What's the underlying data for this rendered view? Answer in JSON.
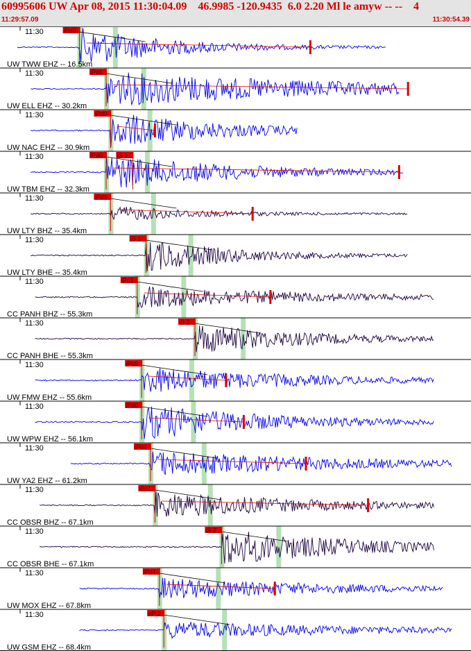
{
  "header": {
    "title": "60995606 UW Apr 08, 2015 11:30:04.09    46.9985 -120.9435  6.0 2.20 Ml le amyw -- --    4",
    "start_time": "11:29:57.09",
    "end_time": "11:30:54.39"
  },
  "chart_data": {
    "type": "line",
    "time_tick_label": "11:30",
    "colors": {
      "z": "#0000ee",
      "h": "#1a0040",
      "pick": "#dd0000",
      "window": "#a8dca8",
      "grid": "#000000",
      "travel_curve": "#000000"
    },
    "traces": [
      {
        "label": "UW TWW EHZ -- 16.5km",
        "comp": "z",
        "start": 0.0,
        "arrival": 0.14,
        "amp": 1.0,
        "decay": 0.2,
        "dur": 0.83,
        "pick": "iPd0",
        "pick_t": 0.14,
        "mark": 0.66
      },
      {
        "label": "UW ELL EHZ -- 30.2km",
        "comp": "z",
        "start": 0.03,
        "arrival": 0.2,
        "amp": 0.9,
        "decay": 0.55,
        "dur": 0.86,
        "pick": "iPd1",
        "pick_t": 0.2,
        "mark": 0.88
      },
      {
        "label": "UW NAC EHZ -- 30.9km",
        "comp": "z",
        "start": 0.03,
        "arrival": 0.21,
        "amp": 0.95,
        "decay": 0.25,
        "dur": 0.63,
        "pick": "iPd0",
        "pick_t": 0.21,
        "mark": 0.31
      },
      {
        "label": "UW TBM EHZ -- 32.3km",
        "comp": "z",
        "start": 0.03,
        "arrival": 0.2,
        "amp": 0.9,
        "decay": 0.3,
        "dur": 0.87,
        "pick": "iPd0",
        "pick_t": 0.2,
        "mark": 0.86,
        "s_pick": "iS 1",
        "s_t": 0.26
      },
      {
        "label": "UW LTY BHZ -- 35.4km",
        "comp": "h",
        "start": 0.03,
        "arrival": 0.21,
        "amp": 0.4,
        "decay": 0.2,
        "dur": 0.88,
        "pick": "iPd1",
        "pick_t": 0.21,
        "mark": 0.53
      },
      {
        "label": "UW LTY BHE -- 35.4km",
        "comp": "h",
        "start": 0.03,
        "arrival": 0.29,
        "amp": 0.85,
        "decay": 0.2,
        "dur": 0.88,
        "pick": "iS 1",
        "pick_t": 0.29,
        "mark": null
      },
      {
        "label": "CC PANH BHZ -- 55.3km",
        "comp": "h",
        "start": 0.04,
        "arrival": 0.27,
        "amp": 0.55,
        "decay": 0.4,
        "dur": 0.94,
        "pick": "iPd1",
        "pick_t": 0.27,
        "mark": 0.57
      },
      {
        "label": "CC PANH BHE -- 55.3km",
        "comp": "h",
        "start": 0.04,
        "arrival": 0.4,
        "amp": 0.8,
        "decay": 0.25,
        "dur": 0.94,
        "pick": "iS 1",
        "pick_t": 0.4,
        "mark": null
      },
      {
        "label": "UW FMW EHZ -- 55.6km",
        "comp": "z",
        "start": 0.04,
        "arrival": 0.28,
        "amp": 0.7,
        "decay": 0.35,
        "dur": 0.94,
        "pick": "iPc0",
        "pick_t": 0.28,
        "mark": 0.47
      },
      {
        "label": "UW WPW EHZ -- 56.1km",
        "comp": "z",
        "start": 0.04,
        "arrival": 0.28,
        "amp": 0.9,
        "decay": 0.3,
        "dur": 0.94,
        "pick": "iPd0",
        "pick_t": 0.28,
        "mark": 0.51
      },
      {
        "label": "UW YA2 EHZ -- 61.2km",
        "comp": "z",
        "start": 0.12,
        "arrival": 0.3,
        "amp": 0.65,
        "decay": 0.45,
        "dur": 0.98,
        "pick": "iPd1",
        "pick_t": 0.3,
        "mark": 0.65
      },
      {
        "label": "CC OBSR BHZ -- 67.1km",
        "comp": "h",
        "start": 0.05,
        "arrival": 0.31,
        "amp": 0.7,
        "decay": 0.35,
        "dur": 0.94,
        "pick": "iPc1",
        "pick_t": 0.31,
        "mark": 0.79
      },
      {
        "label": "CC OBSR BHE -- 67.1km",
        "comp": "h",
        "start": 0.05,
        "arrival": 0.46,
        "amp": 0.95,
        "decay": 0.3,
        "dur": 0.94,
        "pick": "iS 2",
        "pick_t": 0.46,
        "mark": null
      },
      {
        "label": "UW MOX EHZ -- 67.8km",
        "comp": "z",
        "start": 0.14,
        "arrival": 0.32,
        "amp": 0.55,
        "decay": 0.4,
        "dur": 0.96,
        "pick": "iPd1",
        "pick_t": 0.32,
        "mark": 0.58
      },
      {
        "label": "UW GSM EHZ -- 68.4km",
        "comp": "z",
        "start": 0.14,
        "arrival": 0.33,
        "amp": 0.45,
        "decay": 0.45,
        "dur": 0.98,
        "pick": "eP 2",
        "pick_t": 0.33,
        "mark": null
      }
    ]
  }
}
